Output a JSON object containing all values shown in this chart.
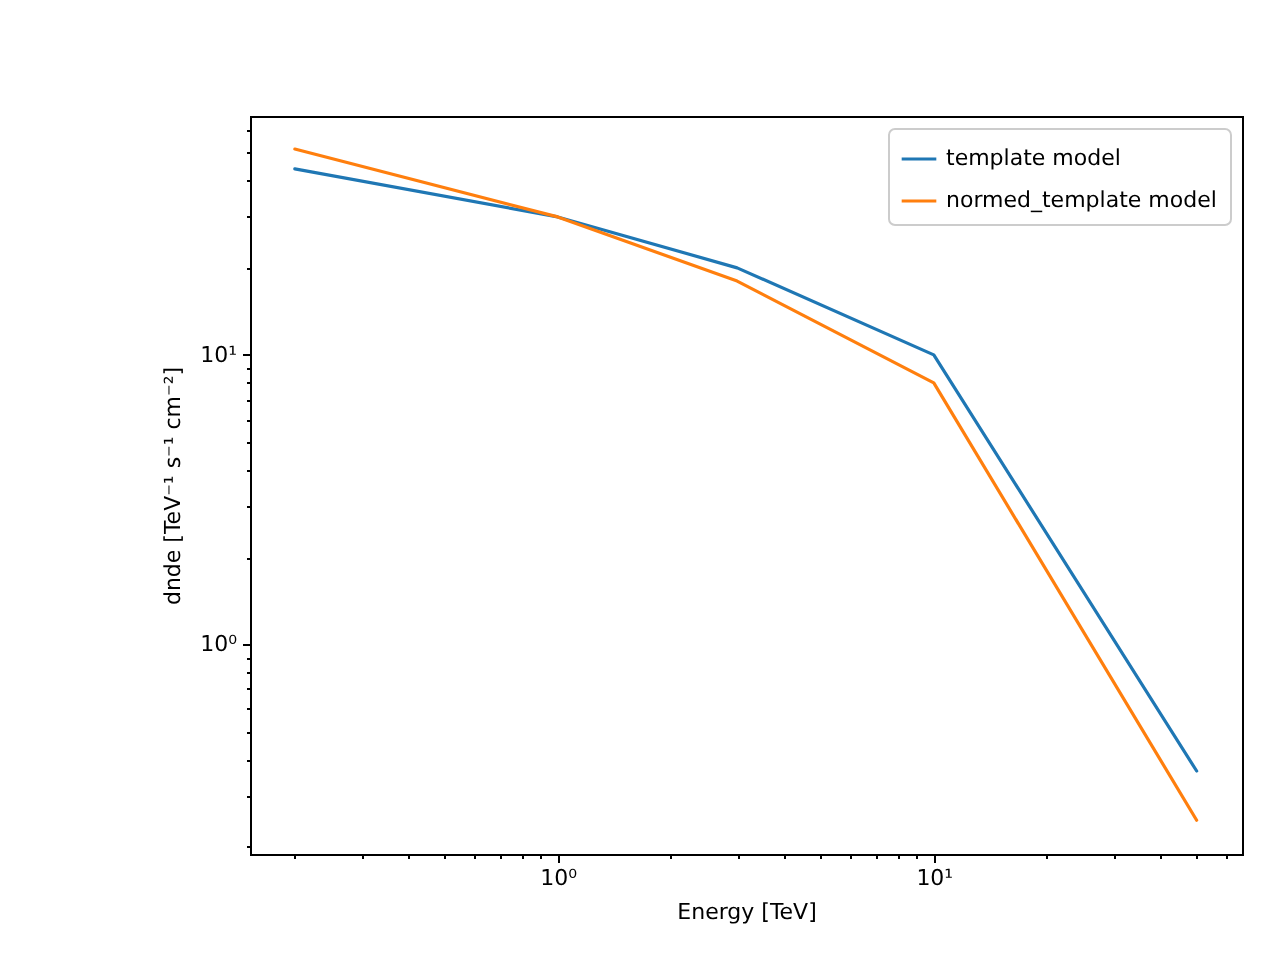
{
  "chart_data": {
    "type": "line",
    "xlabel": "Energy [TeV]",
    "ylabel": "dnde [TeV⁻¹ s⁻¹ cm⁻²]",
    "x": [
      0.2,
      1,
      3,
      10,
      50
    ],
    "series": [
      {
        "name": "template model",
        "color": "#1f77b4",
        "values": [
          44,
          30,
          20,
          10,
          0.364
        ]
      },
      {
        "name": "normed_template model",
        "color": "#ff7f0e",
        "values": [
          51.5,
          30,
          18,
          8,
          0.246
        ]
      }
    ],
    "log": "xy",
    "xlim": [
      0.152,
      66
    ],
    "ylim": [
      0.188,
      67
    ],
    "xticks": [
      {
        "value": 0.2,
        "label": null
      },
      {
        "value": 0.3,
        "label": null
      },
      {
        "value": 0.4,
        "label": null
      },
      {
        "value": 0.5,
        "label": null
      },
      {
        "value": 0.6,
        "label": null
      },
      {
        "value": 0.7,
        "label": null
      },
      {
        "value": 0.8,
        "label": null
      },
      {
        "value": 0.9,
        "label": null
      },
      {
        "value": 1,
        "label": "10⁰"
      },
      {
        "value": 2,
        "label": null
      },
      {
        "value": 3,
        "label": null
      },
      {
        "value": 4,
        "label": null
      },
      {
        "value": 5,
        "label": null
      },
      {
        "value": 6,
        "label": null
      },
      {
        "value": 7,
        "label": null
      },
      {
        "value": 8,
        "label": null
      },
      {
        "value": 9,
        "label": null
      },
      {
        "value": 10,
        "label": "10¹"
      },
      {
        "value": 20,
        "label": null
      },
      {
        "value": 30,
        "label": null
      },
      {
        "value": 40,
        "label": null
      },
      {
        "value": 50,
        "label": null
      },
      {
        "value": 60,
        "label": null
      }
    ],
    "yticks": [
      {
        "value": 0.2,
        "label": null
      },
      {
        "value": 0.3,
        "label": null
      },
      {
        "value": 0.4,
        "label": null
      },
      {
        "value": 0.5,
        "label": null
      },
      {
        "value": 0.6,
        "label": null
      },
      {
        "value": 0.7,
        "label": null
      },
      {
        "value": 0.8,
        "label": null
      },
      {
        "value": 0.9,
        "label": null
      },
      {
        "value": 1,
        "label": "10⁰"
      },
      {
        "value": 2,
        "label": null
      },
      {
        "value": 3,
        "label": null
      },
      {
        "value": 4,
        "label": null
      },
      {
        "value": 5,
        "label": null
      },
      {
        "value": 6,
        "label": null
      },
      {
        "value": 7,
        "label": null
      },
      {
        "value": 8,
        "label": null
      },
      {
        "value": 9,
        "label": null
      },
      {
        "value": 10,
        "label": "10¹"
      },
      {
        "value": 20,
        "label": null
      },
      {
        "value": 30,
        "label": null
      },
      {
        "value": 40,
        "label": null
      },
      {
        "value": 50,
        "label": null
      },
      {
        "value": 60,
        "label": null
      }
    ],
    "legend": "top right",
    "grid": false
  }
}
